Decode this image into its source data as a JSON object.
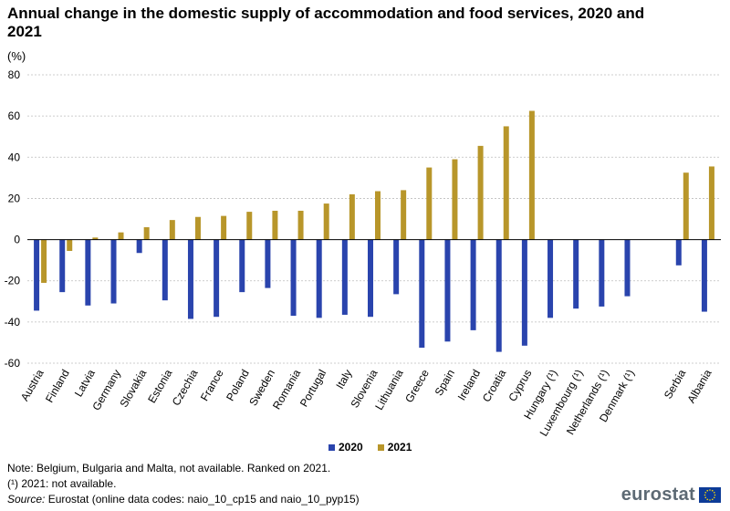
{
  "title": "Annual change in the domestic supply of accommodation and food services, 2020 and 2021",
  "unit": "(%)",
  "notes": {
    "note": "Note: Belgium, Bulgaria and Malta, not available. Ranked on 2021.",
    "footnote": "(¹) 2021: not available.",
    "source_label": "Source:",
    "source_text": "Eurostat (online data codes: naio_10_cp15 and naio_10_pyp15)"
  },
  "logo": {
    "text": "eurostat"
  },
  "colors": {
    "s2020": "#2a44ad",
    "s2021": "#b8962a",
    "grid": "#bdbdbd",
    "axis": "#000000"
  },
  "chart_data": {
    "type": "bar",
    "title": "Annual change in the domestic supply of accommodation and food services, 2020 and 2021",
    "ylabel": "(%)",
    "xlabel": "",
    "ylim": [
      -60,
      80
    ],
    "yticks": [
      -60,
      -40,
      -20,
      0,
      20,
      40,
      60,
      80
    ],
    "grid": true,
    "legend_position": "bottom",
    "categories": [
      "Austria",
      "Finland",
      "Latvia",
      "Germany",
      "Slovakia",
      "Estonia",
      "Czechia",
      "France",
      "Poland",
      "Sweden",
      "Romania",
      "Portugal",
      "Italy",
      "Slovenia",
      "Lithuania",
      "Greece",
      "Spain",
      "Ireland",
      "Croatia",
      "Cyprus",
      "Hungary (¹)",
      "Luxembourg (¹)",
      "Netherlands (¹)",
      "Denmark (¹)",
      "",
      "Serbia",
      "Albania"
    ],
    "series": [
      {
        "name": "2020",
        "values": [
          -34.5,
          -25.5,
          -32,
          -31,
          -6.5,
          -29.5,
          -38.5,
          -37.5,
          -25.5,
          -23.5,
          -37,
          -38,
          -36.5,
          -37.5,
          -26.5,
          -52.5,
          -49.5,
          -44,
          -54.5,
          -51.5,
          -38,
          -33.5,
          -32.5,
          -27.5,
          null,
          -12.5,
          -35
        ]
      },
      {
        "name": "2021",
        "values": [
          -21,
          -5.5,
          1,
          3.5,
          6,
          9.5,
          11,
          11.5,
          13.5,
          14,
          14,
          17.5,
          22,
          23.5,
          24,
          35,
          39,
          45.5,
          55,
          62.5,
          null,
          null,
          null,
          null,
          null,
          32.5,
          35.5
        ]
      }
    ]
  }
}
